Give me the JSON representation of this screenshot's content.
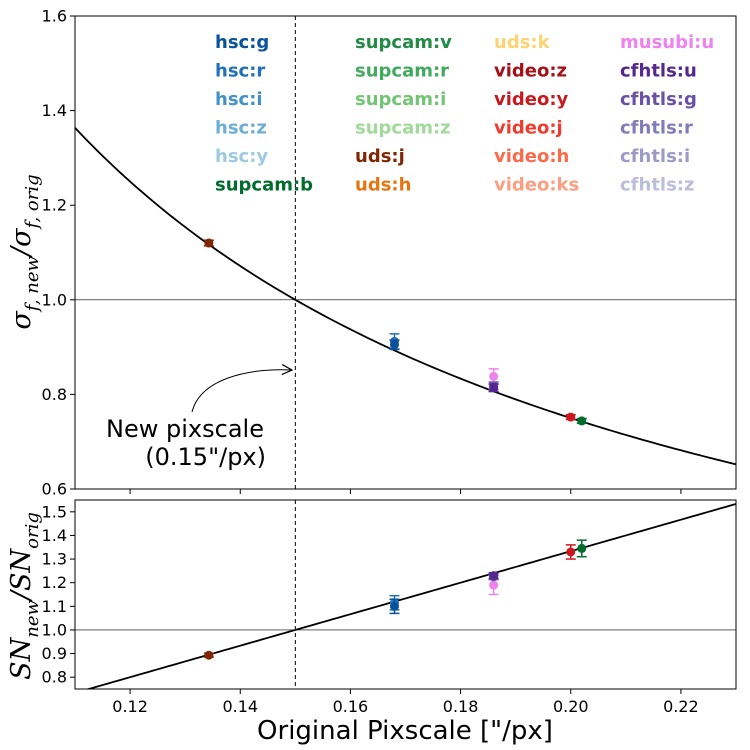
{
  "chart_data": {
    "type": "scatter",
    "x_axis": {
      "label": "Original Pixscale [\"/px]",
      "lim": [
        0.11,
        0.23
      ],
      "ticks": [
        0.12,
        0.14,
        0.16,
        0.18,
        0.2,
        0.22
      ],
      "tick_labels": [
        "0.12",
        "0.14",
        "0.16",
        "0.18",
        "0.20",
        "0.22"
      ]
    },
    "reference_line": {
      "x": 0.15,
      "style": "dashed"
    },
    "annotation": {
      "lines": [
        "New pixscale",
        "(0.15\"/px)"
      ],
      "points_to": [
        0.15,
        0.85
      ]
    },
    "panels": [
      {
        "name": "top",
        "ylabel": "σ_f,new/σ_f,orig",
        "ylabel_main": "σ",
        "ylabel_sub1": "f, new",
        "ylabel_mid": "/σ",
        "ylabel_sub2": "f, orig",
        "ylim": [
          0.6,
          1.6
        ],
        "yticks": [
          0.6,
          0.8,
          1.0,
          1.2,
          1.4,
          1.6
        ],
        "ytick_labels": [
          "0.6",
          "0.8",
          "1.0",
          "1.2",
          "1.4",
          "1.6"
        ],
        "hline": 1.0,
        "curve": {
          "form": "y = x / 0.15",
          "x": [
            0.11,
            0.12,
            0.13,
            0.14,
            0.15,
            0.16,
            0.17,
            0.18,
            0.19,
            0.2,
            0.21,
            0.22,
            0.23
          ],
          "y": [
            1.365,
            1.25,
            1.154,
            1.071,
            1.0,
            0.9375,
            0.882,
            0.833,
            0.789,
            0.75,
            0.714,
            0.682,
            0.652
          ]
        },
        "points": [
          {
            "x": 0.1343,
            "y": 1.12,
            "yerr": 0.006,
            "color": "#7f2704"
          },
          {
            "x": 0.168,
            "y": 0.912,
            "yerr": 0.016,
            "color": "#2171b5"
          },
          {
            "x": 0.168,
            "y": 0.905,
            "yerr": 0.01,
            "color": "#08519c"
          },
          {
            "x": 0.186,
            "y": 0.838,
            "yerr": 0.016,
            "color": "#ee82ee"
          },
          {
            "x": 0.186,
            "y": 0.818,
            "yerr": 0.008,
            "color": "#6a51a3"
          },
          {
            "x": 0.186,
            "y": 0.814,
            "yerr": 0.008,
            "color": "#54278f"
          },
          {
            "x": 0.2,
            "y": 0.752,
            "yerr": 0.005,
            "color": "#cb181d"
          },
          {
            "x": 0.202,
            "y": 0.744,
            "yerr": 0.005,
            "color": "#006d2c"
          }
        ]
      },
      {
        "name": "bottom",
        "ylabel": "SN_new/SN_orig",
        "ylabel_main": "SN",
        "ylabel_sub1": "new",
        "ylabel_mid": "/SN",
        "ylabel_sub2": "orig",
        "ylim": [
          0.75,
          1.55
        ],
        "yticks": [
          0.8,
          0.9,
          1.0,
          1.1,
          1.2,
          1.3,
          1.4,
          1.5
        ],
        "ytick_labels": [
          "0.8",
          "0.9",
          "1.0",
          "1.1",
          "1.2",
          "1.3",
          "1.4",
          "1.5"
        ],
        "hline": 1.0,
        "curve": {
          "form": "y = 0.15 / x",
          "x": [
            0.11,
            0.23
          ],
          "y": [
            0.733,
            1.533
          ]
        },
        "points": [
          {
            "x": 0.1343,
            "y": 0.893,
            "yerr": 0.008,
            "color": "#7f2704"
          },
          {
            "x": 0.168,
            "y": 1.115,
            "yerr": 0.03,
            "color": "#2171b5"
          },
          {
            "x": 0.168,
            "y": 1.1,
            "yerr": 0.03,
            "color": "#08519c"
          },
          {
            "x": 0.186,
            "y": 1.19,
            "yerr": 0.04,
            "color": "#ee82ee"
          },
          {
            "x": 0.186,
            "y": 1.225,
            "yerr": 0.012,
            "color": "#6a51a3"
          },
          {
            "x": 0.186,
            "y": 1.23,
            "yerr": 0.012,
            "color": "#54278f"
          },
          {
            "x": 0.2,
            "y": 1.33,
            "yerr": 0.03,
            "color": "#cb181d"
          },
          {
            "x": 0.202,
            "y": 1.345,
            "yerr": 0.035,
            "color": "#006d2c"
          }
        ]
      }
    ],
    "legend": {
      "placement": "top-right (inside top panel)",
      "columns": [
        [
          {
            "label": "hsc:g",
            "color": "#08519c"
          },
          {
            "label": "hsc:r",
            "color": "#2171b5"
          },
          {
            "label": "hsc:i",
            "color": "#4292c6"
          },
          {
            "label": "hsc:z",
            "color": "#6baed6"
          },
          {
            "label": "hsc:y",
            "color": "#9ecae1"
          },
          {
            "label": "supcam:b",
            "color": "#006d2c"
          }
        ],
        [
          {
            "label": "supcam:v",
            "color": "#238b45"
          },
          {
            "label": "supcam:r",
            "color": "#41ab5d"
          },
          {
            "label": "supcam:i",
            "color": "#74c476"
          },
          {
            "label": "supcam:z",
            "color": "#a1d99b"
          },
          {
            "label": "uds:j",
            "color": "#7f2704"
          },
          {
            "label": "uds:h",
            "color": "#e6750e"
          }
        ],
        [
          {
            "label": "uds:k",
            "color": "#fdd273"
          },
          {
            "label": "video:z",
            "color": "#a50f15"
          },
          {
            "label": "video:y",
            "color": "#cb181d"
          },
          {
            "label": "video:j",
            "color": "#ef3b2c"
          },
          {
            "label": "video:h",
            "color": "#fb6a4a"
          },
          {
            "label": "video:ks",
            "color": "#fc9f80"
          }
        ],
        [
          {
            "label": "musubi:u",
            "color": "#ee82ee"
          },
          {
            "label": "cfhtls:u",
            "color": "#54278f"
          },
          {
            "label": "cfhtls:g",
            "color": "#6a51a3"
          },
          {
            "label": "cfhtls:r",
            "color": "#807dba"
          },
          {
            "label": "cfhtls:i",
            "color": "#9e9ac8"
          },
          {
            "label": "cfhtls:z",
            "color": "#bcbddc"
          }
        ]
      ]
    }
  }
}
